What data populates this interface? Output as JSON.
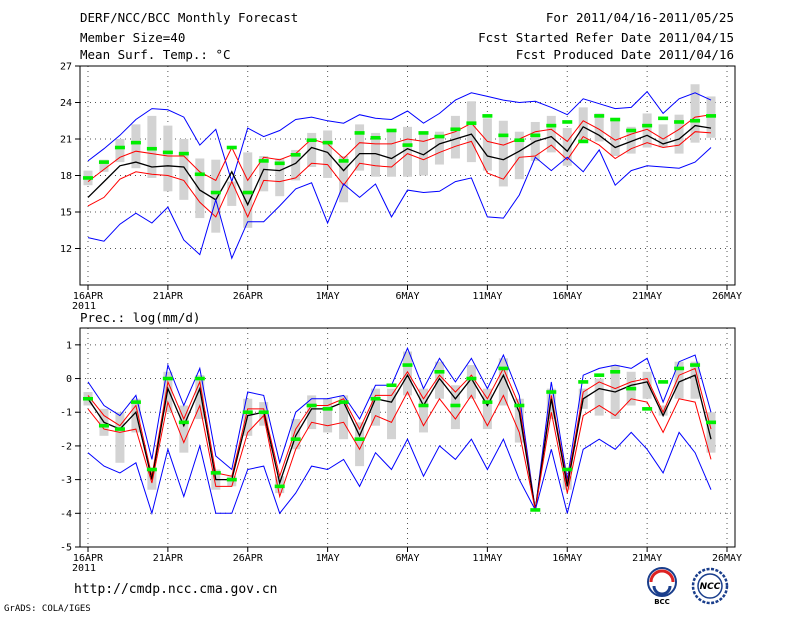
{
  "header": {
    "title": "DERF/NCC/BCC Monthly Forecast",
    "member_size": "Member Size=40",
    "variable": "Mean Surf. Temp.: °C",
    "period": "For 2011/04/16-2011/05/25",
    "refer_date": "Fcst Started Refer Date 2011/04/15",
    "produced_date": "Fcst Produced Date 2011/04/16"
  },
  "footer": {
    "url": "http://cmdp.ncc.cma.gov.cn",
    "credit": "GrADS: COLA/IGES"
  },
  "logos": {
    "bcc": "BCC",
    "ncc": "NCC"
  },
  "colors": {
    "max_min": "#0000ff",
    "percentile": "#ff0000",
    "mean": "#000000",
    "box": "#d3d3d3",
    "median": "#00ee00",
    "grid": "#555555"
  },
  "chart_data": [
    {
      "type": "line",
      "name": "temperature",
      "title": "Mean Surf. Temp.: °C",
      "xlabel": "",
      "ylabel": "°C",
      "ylim": [
        9,
        27
      ],
      "yticks": [
        12,
        15,
        18,
        21,
        24,
        27
      ],
      "x": [
        1,
        2,
        3,
        4,
        5,
        6,
        7,
        8,
        9,
        10,
        11,
        12,
        13,
        14,
        15,
        16,
        17,
        18,
        19,
        20,
        21,
        22,
        23,
        24,
        25,
        26,
        27,
        28,
        29,
        30,
        31,
        32,
        33,
        34,
        35,
        36,
        37,
        38,
        39,
        40
      ],
      "xticks": [
        {
          "day": 1,
          "label": "16APR",
          "sub": "2011"
        },
        {
          "day": 6,
          "label": "21APR"
        },
        {
          "day": 11,
          "label": "26APR"
        },
        {
          "day": 16,
          "label": "1MAY"
        },
        {
          "day": 21,
          "label": "6MAY"
        },
        {
          "day": 26,
          "label": "11MAY"
        },
        {
          "day": 31,
          "label": "16MAY"
        },
        {
          "day": 36,
          "label": "21MAY"
        },
        {
          "day": 41,
          "label": "26MAY"
        }
      ],
      "series": [
        {
          "name": "max",
          "role": "max",
          "values": [
            19.2,
            20.2,
            21.3,
            22.6,
            23.5,
            23.4,
            22.8,
            20.5,
            21.8,
            17.5,
            21.9,
            21.2,
            21.7,
            22.6,
            22.8,
            22.5,
            22.3,
            23.0,
            22.7,
            22.6,
            23.3,
            22.3,
            23.1,
            24.2,
            24.8,
            24.5,
            24.2,
            24.0,
            24.1,
            23.6,
            23.0,
            24.3,
            23.9,
            23.5,
            23.6,
            24.9,
            23.1,
            24.3,
            24.8,
            24.2
          ]
        },
        {
          "name": "p90",
          "role": "percentile",
          "values": [
            17.5,
            18.5,
            19.5,
            20.0,
            19.8,
            19.6,
            19.6,
            18.3,
            17.6,
            20.3,
            17.6,
            19.5,
            19.3,
            19.8,
            21.0,
            20.6,
            19.4,
            20.7,
            20.6,
            20.6,
            21.0,
            20.8,
            21.2,
            21.6,
            22.3,
            20.8,
            20.5,
            21.0,
            21.6,
            21.8,
            20.8,
            22.5,
            21.8,
            20.9,
            21.4,
            21.8,
            21.0,
            21.8,
            22.8,
            23.0
          ]
        },
        {
          "name": "mean",
          "role": "mean",
          "values": [
            16.2,
            17.5,
            18.8,
            19.1,
            18.7,
            18.8,
            18.7,
            16.8,
            16.0,
            18.3,
            15.6,
            18.5,
            18.4,
            19.0,
            20.3,
            19.9,
            18.4,
            19.8,
            19.8,
            19.4,
            20.2,
            19.7,
            20.6,
            21.0,
            21.4,
            19.6,
            19.3,
            20.0,
            20.8,
            21.2,
            20.0,
            22.0,
            21.3,
            20.3,
            20.8,
            21.3,
            20.6,
            21.0,
            22.1,
            21.9
          ]
        },
        {
          "name": "p10",
          "role": "percentile",
          "values": [
            15.5,
            16.2,
            17.7,
            18.3,
            18.1,
            18.0,
            17.6,
            15.8,
            14.6,
            17.5,
            14.6,
            17.6,
            17.5,
            17.8,
            19.0,
            18.9,
            17.2,
            19.0,
            18.8,
            18.7,
            19.8,
            19.3,
            19.9,
            20.4,
            20.8,
            18.2,
            17.7,
            19.5,
            19.6,
            20.5,
            19.3,
            21.2,
            20.5,
            19.4,
            20.2,
            20.7,
            20.3,
            20.5,
            21.6,
            21.5
          ]
        },
        {
          "name": "min",
          "role": "min",
          "values": [
            12.9,
            12.6,
            14.0,
            14.9,
            14.1,
            15.4,
            12.7,
            11.5,
            16.0,
            11.2,
            14.2,
            14.2,
            15.5,
            16.9,
            17.4,
            14.1,
            17.3,
            16.2,
            17.3,
            14.6,
            16.8,
            16.6,
            16.7,
            17.5,
            17.8,
            14.6,
            14.5,
            16.4,
            19.5,
            18.4,
            19.5,
            18.3,
            20.1,
            17.2,
            18.4,
            18.8,
            18.7,
            18.6,
            19.1,
            20.3
          ]
        }
      ],
      "box_low": [
        17.2,
        18.3,
        19.1,
        18.6,
        17.8,
        16.7,
        16.0,
        14.5,
        13.3,
        15.5,
        13.7,
        16.7,
        16.3,
        17.6,
        18.7,
        17.8,
        15.8,
        18.4,
        17.9,
        17.9,
        17.9,
        18.0,
        18.9,
        19.4,
        19.1,
        18.4,
        17.1,
        17.7,
        19.2,
        19.9,
        18.8,
        20.9,
        20.8,
        19.6,
        19.8,
        20.3,
        20.3,
        19.8,
        20.7,
        21.1
      ],
      "box_high": [
        18.4,
        19.3,
        21.0,
        22.2,
        22.9,
        22.1,
        21.0,
        19.4,
        19.3,
        17.5,
        19.9,
        19.6,
        19.4,
        20.1,
        21.5,
        21.7,
        19.6,
        22.2,
        21.5,
        21.6,
        22.0,
        21.6,
        21.6,
        22.9,
        24.1,
        22.7,
        22.5,
        21.6,
        22.4,
        22.9,
        21.9,
        23.6,
        23.1,
        22.6,
        22.0,
        23.1,
        22.2,
        23.0,
        25.5,
        24.5
      ],
      "median": [
        17.8,
        19.1,
        20.3,
        20.7,
        20.2,
        19.9,
        19.8,
        18.1,
        16.6,
        20.3,
        16.6,
        19.2,
        19.0,
        19.7,
        20.9,
        20.7,
        19.2,
        21.5,
        21.1,
        21.7,
        20.5,
        21.5,
        21.2,
        21.8,
        22.3,
        22.9,
        21.3,
        20.9,
        21.3,
        22.1,
        22.4,
        20.8,
        22.9,
        22.6,
        21.7,
        22.1,
        22.7,
        22.4,
        22.5,
        22.9
      ]
    },
    {
      "type": "line",
      "name": "precipitation",
      "title": "Prec.: log(mm/d)",
      "xlabel": "",
      "ylabel": "log(mm/d)",
      "ylim": [
        -5,
        1.5
      ],
      "yticks": [
        -5,
        -4,
        -3,
        -2,
        -1,
        0,
        1
      ],
      "x": [
        1,
        2,
        3,
        4,
        5,
        6,
        7,
        8,
        9,
        10,
        11,
        12,
        13,
        14,
        15,
        16,
        17,
        18,
        19,
        20,
        21,
        22,
        23,
        24,
        25,
        26,
        27,
        28,
        29,
        30,
        31,
        32,
        33,
        34,
        35,
        36,
        37,
        38,
        39,
        40
      ],
      "xticks": [
        {
          "day": 1,
          "label": "16APR",
          "sub": "2011"
        },
        {
          "day": 6,
          "label": "21APR"
        },
        {
          "day": 11,
          "label": "26APR"
        },
        {
          "day": 16,
          "label": "1MAY"
        },
        {
          "day": 21,
          "label": "6MAY"
        },
        {
          "day": 26,
          "label": "11MAY"
        },
        {
          "day": 31,
          "label": "16MAY"
        },
        {
          "day": 36,
          "label": "21MAY"
        },
        {
          "day": 41,
          "label": "26MAY"
        }
      ],
      "series": [
        {
          "name": "max",
          "role": "max",
          "values": [
            -0.1,
            -0.8,
            -1.1,
            -0.5,
            -2.4,
            0.4,
            -0.8,
            0.3,
            -2.3,
            -2.7,
            -0.4,
            -0.5,
            -2.5,
            -1.0,
            -0.6,
            -0.6,
            -0.5,
            -1.2,
            -0.2,
            -0.2,
            0.9,
            -0.3,
            0.6,
            -0.1,
            0.6,
            -0.3,
            0.7,
            -0.5,
            -3.9,
            -0.1,
            -3.0,
            0.1,
            0.3,
            0.4,
            0.3,
            0.6,
            -0.7,
            0.5,
            0.7,
            -1.0
          ]
        },
        {
          "name": "p90",
          "role": "percentile",
          "values": [
            -0.5,
            -1.1,
            -1.4,
            -0.8,
            -2.9,
            -0.1,
            -1.2,
            -0.1,
            -2.8,
            -2.9,
            -0.9,
            -0.9,
            -2.9,
            -1.5,
            -0.8,
            -0.8,
            -0.6,
            -1.5,
            -0.5,
            -0.5,
            0.2,
            -0.6,
            0.1,
            -0.4,
            0.1,
            -0.6,
            0.3,
            -0.8,
            -3.9,
            -0.5,
            -3.1,
            -0.4,
            -0.1,
            -0.3,
            -0.1,
            0.0,
            -1.0,
            0.1,
            0.3,
            -1.5
          ]
        },
        {
          "name": "mean",
          "role": "mean",
          "values": [
            -0.6,
            -1.3,
            -1.5,
            -1.0,
            -3.0,
            -0.3,
            -1.4,
            -0.3,
            -3.0,
            -3.0,
            -1.1,
            -1.0,
            -3.1,
            -1.7,
            -0.9,
            -0.9,
            -0.7,
            -1.7,
            -0.6,
            -0.7,
            0.1,
            -0.8,
            0.0,
            -0.6,
            0.0,
            -0.8,
            0.1,
            -1.0,
            -3.9,
            -0.6,
            -3.2,
            -0.6,
            -0.3,
            -0.4,
            -0.2,
            -0.1,
            -1.1,
            -0.1,
            0.1,
            -1.8
          ]
        },
        {
          "name": "p10",
          "role": "percentile",
          "values": [
            -0.9,
            -1.5,
            -1.6,
            -1.5,
            -3.1,
            -0.7,
            -1.9,
            -0.8,
            -3.2,
            -3.2,
            -1.6,
            -1.1,
            -3.5,
            -2.1,
            -1.3,
            -1.4,
            -1.3,
            -2.1,
            -1.1,
            -1.3,
            -0.4,
            -1.4,
            -0.6,
            -1.2,
            -0.5,
            -1.4,
            -0.5,
            -1.6,
            -3.9,
            -1.0,
            -3.4,
            -1.1,
            -0.8,
            -1.1,
            -0.6,
            -0.7,
            -1.6,
            -0.6,
            -0.7,
            -2.4
          ]
        },
        {
          "name": "min",
          "role": "min",
          "values": [
            -2.2,
            -2.6,
            -2.8,
            -2.5,
            -4.0,
            -2.1,
            -3.5,
            -2.0,
            -4.0,
            -4.0,
            -2.7,
            -2.6,
            -4.0,
            -3.4,
            -2.6,
            -2.7,
            -2.4,
            -3.2,
            -2.2,
            -2.7,
            -1.8,
            -2.9,
            -2.0,
            -2.4,
            -1.8,
            -2.7,
            -1.8,
            -3.0,
            -3.9,
            -2.1,
            -4.0,
            -2.1,
            -1.8,
            -2.1,
            -1.6,
            -2.1,
            -2.8,
            -1.6,
            -2.2,
            -3.3
          ]
        }
      ],
      "box_low": [
        -0.8,
        -1.7,
        -2.5,
        -1.6,
        -3.3,
        -1.0,
        -2.2,
        -1.2,
        -3.3,
        -3.2,
        -1.7,
        -1.4,
        -3.4,
        -2.1,
        -1.5,
        -1.6,
        -1.8,
        -2.6,
        -1.4,
        -1.8,
        -0.5,
        -1.6,
        -0.6,
        -1.5,
        -0.6,
        -1.5,
        -0.8,
        -1.9,
        -3.9,
        -1.2,
        -3.3,
        -0.9,
        -1.1,
        -1.2,
        -0.8,
        -0.6,
        -1.1,
        -0.6,
        -0.6,
        -2.2
      ],
      "box_high": [
        -0.4,
        -0.9,
        -1.0,
        -0.6,
        -2.7,
        0.2,
        -0.8,
        0.1,
        -2.7,
        -2.9,
        -0.6,
        -0.7,
        -2.9,
        -1.2,
        -0.5,
        -0.6,
        -0.5,
        -1.3,
        -0.3,
        -0.3,
        0.8,
        -0.3,
        0.5,
        -0.2,
        0.4,
        -0.3,
        0.6,
        -0.6,
        -3.9,
        -0.3,
        -2.9,
        -0.3,
        0.0,
        0.4,
        0.2,
        0.2,
        -0.8,
        0.5,
        0.5,
        -1.0
      ],
      "median": [
        -0.6,
        -1.4,
        -1.5,
        -0.7,
        -2.7,
        0.0,
        -1.3,
        0.0,
        -2.8,
        -3.0,
        -1.0,
        -1.0,
        -3.2,
        -1.8,
        -0.8,
        -0.9,
        -0.7,
        -1.8,
        -0.6,
        -0.2,
        0.4,
        -0.8,
        0.2,
        -0.8,
        0.0,
        -0.7,
        0.3,
        -0.8,
        -3.9,
        -0.4,
        -2.7,
        -0.1,
        0.1,
        0.2,
        -0.3,
        -0.9,
        -0.1,
        0.3,
        0.4,
        -1.3
      ]
    }
  ]
}
